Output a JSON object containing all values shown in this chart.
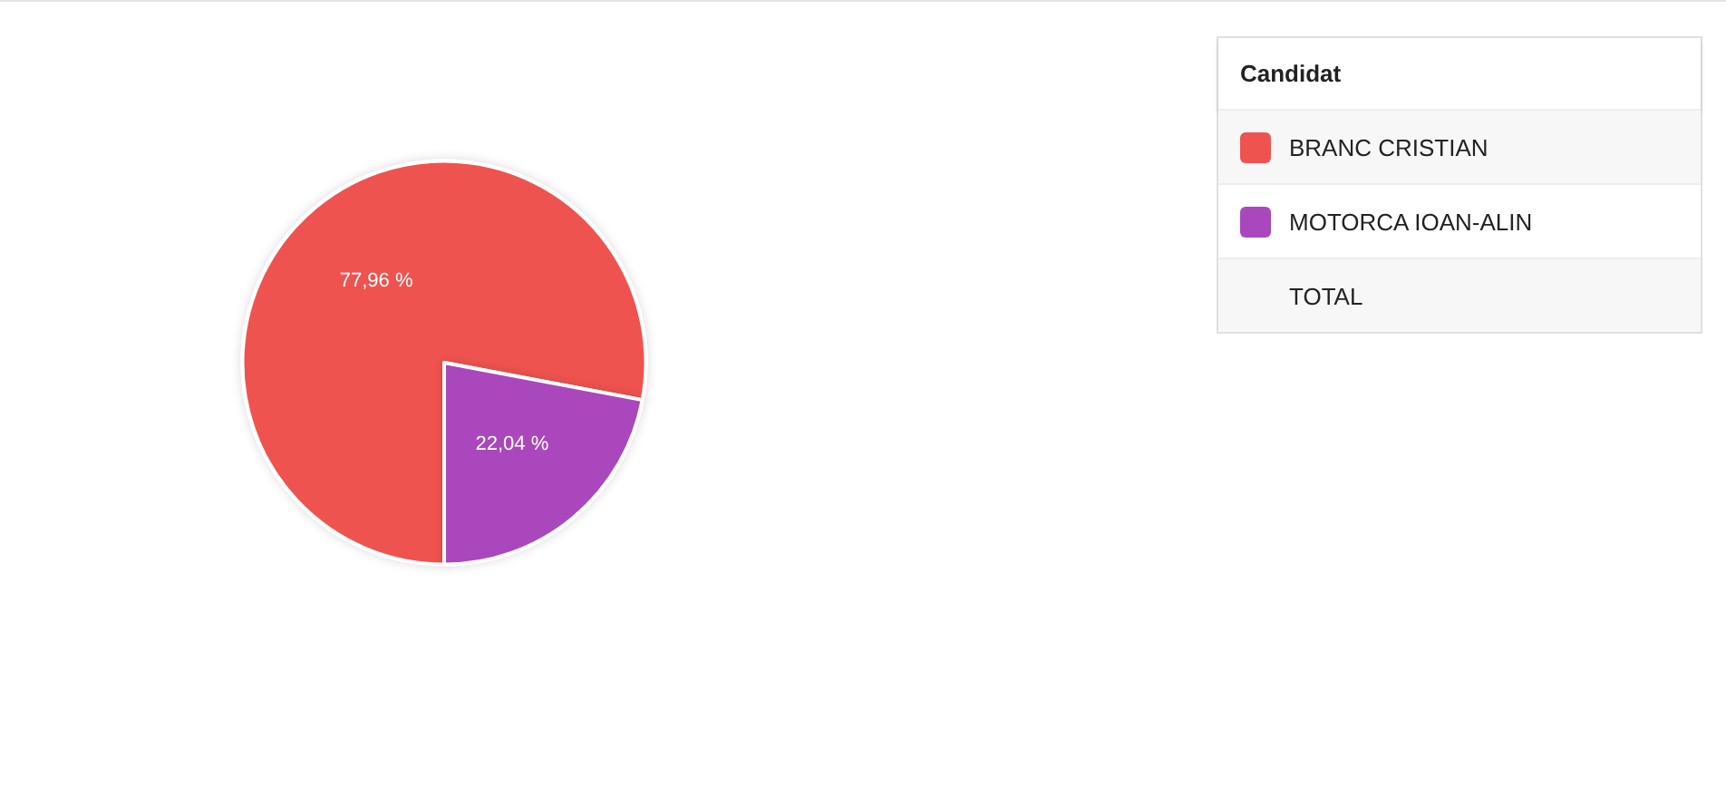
{
  "chart_data": {
    "type": "pie",
    "legend_title": "Candidat",
    "legend": "top right",
    "categories": [
      "BRANC CRISTIAN",
      "MOTORCA IOAN-ALIN"
    ],
    "values": [
      77.96,
      22.04
    ],
    "value_labels": [
      "77,96 %",
      "22,04 %"
    ],
    "colors": [
      "#ef5350",
      "#ab47bc"
    ],
    "annotations": [
      "TOTAL"
    ]
  }
}
